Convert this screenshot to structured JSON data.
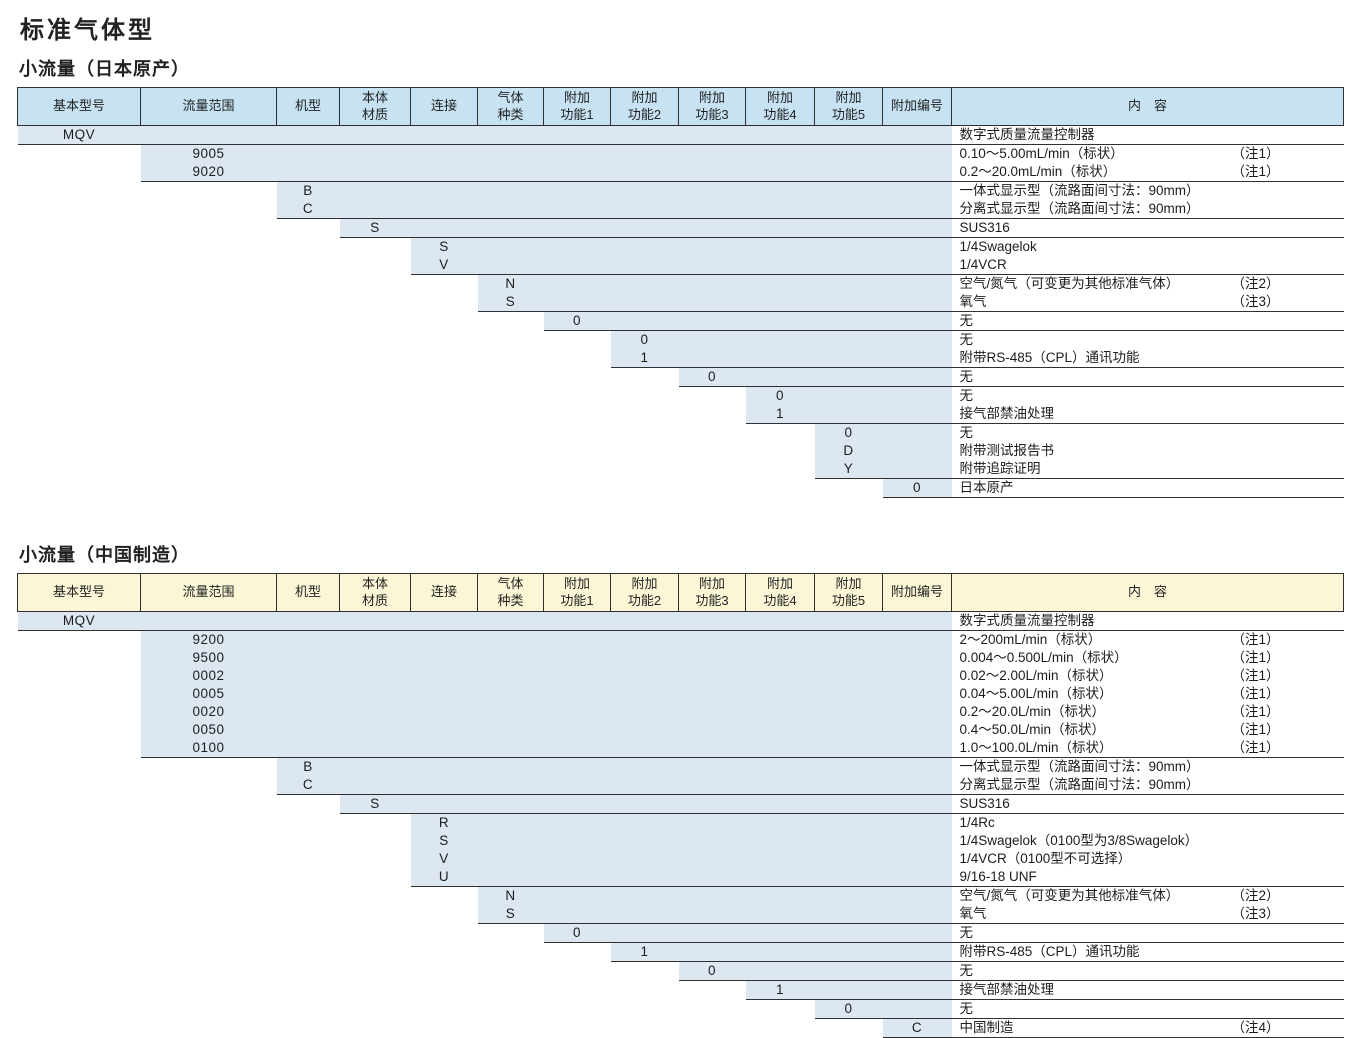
{
  "page_title": "标准气体型",
  "colors": {
    "table1_header_bg": "#c7e3f3",
    "table2_header_bg": "#fbf7d6",
    "cell_fill_bg": "#dde7f1",
    "border_dark": "#303030",
    "border_light": "#8f8f8f"
  },
  "columns": [
    "基本型号",
    "流量范围",
    "机型",
    "本体\n材质",
    "连接",
    "气体\n种类",
    "附加\n功能1",
    "附加\n功能2",
    "附加\n功能3",
    "附加\n功能4",
    "附加\n功能5",
    "附加编号",
    "内　容"
  ],
  "tables": [
    {
      "subtitle": "小流量（日本原产）",
      "header_style": "blue",
      "rows": [
        {
          "col": 0,
          "code": "MQV",
          "content": "数字式质量流量控制器",
          "note": ""
        },
        {
          "col": 1,
          "code": "9005",
          "content": "0.10～5.00mL/min（标状）",
          "note": "（注1）"
        },
        {
          "col": 1,
          "code": "9020",
          "content": "0.2～20.0mL/min（标状）",
          "note": "（注1）"
        },
        {
          "col": 2,
          "code": "B",
          "content": "一体式显示型（流路面间寸法：90mm）",
          "note": ""
        },
        {
          "col": 2,
          "code": "C",
          "content": "分离式显示型（流路面间寸法：90mm）",
          "note": ""
        },
        {
          "col": 3,
          "code": "S",
          "content": "SUS316",
          "note": ""
        },
        {
          "col": 4,
          "code": "S",
          "content": "1/4Swagelok",
          "note": ""
        },
        {
          "col": 4,
          "code": "V",
          "content": "1/4VCR",
          "note": ""
        },
        {
          "col": 5,
          "code": "N",
          "content": "空气/氮气（可变更为其他标准气体）",
          "note": "（注2）"
        },
        {
          "col": 5,
          "code": "S",
          "content": "氧气",
          "note": "（注3）"
        },
        {
          "col": 6,
          "code": "0",
          "content": "无",
          "note": ""
        },
        {
          "col": 7,
          "code": "0",
          "content": "无",
          "note": ""
        },
        {
          "col": 7,
          "code": "1",
          "content": "附带RS-485（CPL）通讯功能",
          "note": ""
        },
        {
          "col": 8,
          "code": "0",
          "content": "无",
          "note": ""
        },
        {
          "col": 9,
          "code": "0",
          "content": "无",
          "note": ""
        },
        {
          "col": 9,
          "code": "1",
          "content": "接气部禁油处理",
          "note": ""
        },
        {
          "col": 10,
          "code": "0",
          "content": "无",
          "note": ""
        },
        {
          "col": 10,
          "code": "D",
          "content": "附带测试报告书",
          "note": ""
        },
        {
          "col": 10,
          "code": "Y",
          "content": "附带追踪证明",
          "note": ""
        },
        {
          "col": 11,
          "code": "0",
          "content": "日本原产",
          "note": ""
        }
      ]
    },
    {
      "subtitle": "小流量（中国制造）",
      "header_style": "yellow",
      "rows": [
        {
          "col": 0,
          "code": "MQV",
          "content": "数字式质量流量控制器",
          "note": ""
        },
        {
          "col": 1,
          "code": "9200",
          "content": "2～200mL/min（标状）",
          "note": "（注1）"
        },
        {
          "col": 1,
          "code": "9500",
          "content": "0.004～0.500L/min（标状）",
          "note": "（注1）"
        },
        {
          "col": 1,
          "code": "0002",
          "content": "0.02～2.00L/min（标状）",
          "note": "（注1）"
        },
        {
          "col": 1,
          "code": "0005",
          "content": "0.04～5.00L/min（标状）",
          "note": "（注1）"
        },
        {
          "col": 1,
          "code": "0020",
          "content": "0.2～20.0L/min（标状）",
          "note": "（注1）"
        },
        {
          "col": 1,
          "code": "0050",
          "content": "0.4～50.0L/min（标状）",
          "note": "（注1）"
        },
        {
          "col": 1,
          "code": "0100",
          "content": "1.0～100.0L/min（标状）",
          "note": "（注1）"
        },
        {
          "col": 2,
          "code": "B",
          "content": "一体式显示型（流路面间寸法：90mm）",
          "note": ""
        },
        {
          "col": 2,
          "code": "C",
          "content": "分离式显示型（流路面间寸法：90mm）",
          "note": ""
        },
        {
          "col": 3,
          "code": "S",
          "content": "SUS316",
          "note": ""
        },
        {
          "col": 4,
          "code": "R",
          "content": "1/4Rc",
          "note": ""
        },
        {
          "col": 4,
          "code": "S",
          "content": "1/4Swagelok（0100型为3/8Swagelok）",
          "note": ""
        },
        {
          "col": 4,
          "code": "V",
          "content": "1/4VCR（0100型不可选择）",
          "note": ""
        },
        {
          "col": 4,
          "code": "U",
          "content": "9/16-18 UNF",
          "note": ""
        },
        {
          "col": 5,
          "code": "N",
          "content": "空气/氮气（可变更为其他标准气体）",
          "note": "（注2）"
        },
        {
          "col": 5,
          "code": "S",
          "content": "氧气",
          "note": "（注3）"
        },
        {
          "col": 6,
          "code": "0",
          "content": "无",
          "note": ""
        },
        {
          "col": 7,
          "code": "1",
          "content": "附带RS-485（CPL）通讯功能",
          "note": ""
        },
        {
          "col": 8,
          "code": "0",
          "content": "无",
          "note": ""
        },
        {
          "col": 9,
          "code": "1",
          "content": "接气部禁油处理",
          "note": ""
        },
        {
          "col": 10,
          "code": "0",
          "content": "无",
          "note": ""
        },
        {
          "col": 11,
          "code": "C",
          "content": "中国制造",
          "note": "（注4）"
        }
      ]
    }
  ]
}
